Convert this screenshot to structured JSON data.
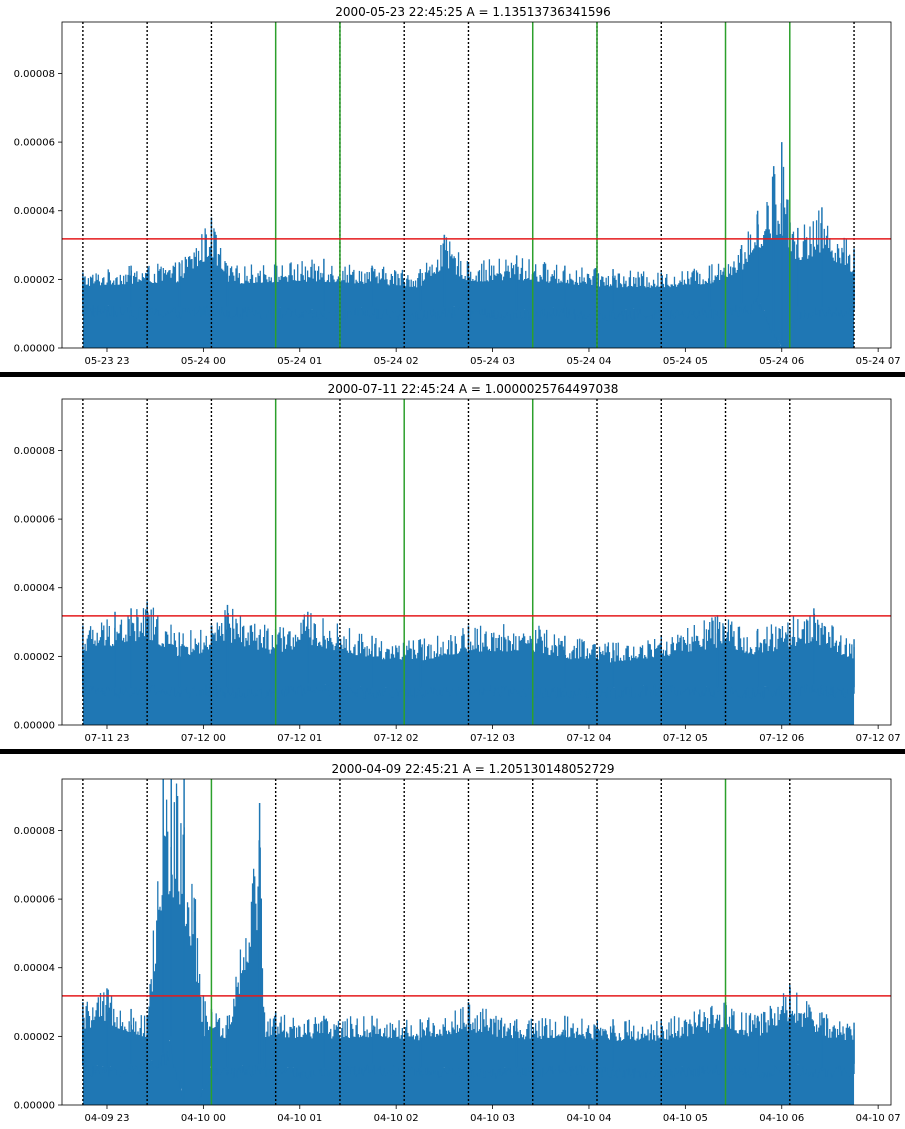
{
  "style": {
    "series_color": "#1f77b4",
    "threshold_color": "#e41a1c",
    "event_line_color": "#2ca02c",
    "marker_line_color": "#000000",
    "separator_color": "#000000"
  },
  "chart_data": [
    {
      "type": "area",
      "title": "2000-05-23 22:45:25  A = 1.13513736341596",
      "xlabel": "",
      "ylabel": "",
      "x_range": [
        "2000-05-23 22:45:25",
        "2000-05-24 06:45:25"
      ],
      "xlim": [
        "2000-05-23 22:32",
        "2000-05-24 07:08"
      ],
      "ylim": [
        0,
        9.5e-05
      ],
      "yticks": [
        0,
        2e-05,
        4e-05,
        6e-05,
        8e-05
      ],
      "ytick_labels": [
        "0.00000",
        "0.00002",
        "0.00004",
        "0.00006",
        "0.00008"
      ],
      "xticks": [
        "2000-05-23 23:00",
        "2000-05-24 00:00",
        "2000-05-24 01:00",
        "2000-05-24 02:00",
        "2000-05-24 03:00",
        "2000-05-24 04:00",
        "2000-05-24 05:00",
        "2000-05-24 06:00",
        "2000-05-24 07:00"
      ],
      "xtick_labels": [
        "05-23 23",
        "05-24 00",
        "05-24 01",
        "05-24 02",
        "05-24 03",
        "05-24 04",
        "05-24 05",
        "05-24 06",
        "05-24 07"
      ],
      "threshold": 3.18e-05,
      "dotted_lines": [
        "2000-05-23 22:45",
        "2000-05-23 23:25",
        "2000-05-24 00:05",
        "2000-05-24 01:25",
        "2000-05-24 02:05",
        "2000-05-24 02:45",
        "2000-05-24 04:05",
        "2000-05-24 04:45",
        "2000-05-24 06:45"
      ],
      "green_lines": [
        "2000-05-24 00:45",
        "2000-05-24 01:25",
        "2000-05-24 03:25",
        "2000-05-24 04:05",
        "2000-05-24 05:25",
        "2000-05-24 06:05"
      ],
      "series": [
        {
          "x": [
            "2000-05-23 22:45",
            "2000-05-23 23:15",
            "2000-05-23 23:45",
            "2000-05-24 00:05",
            "2000-05-24 00:15",
            "2000-05-24 00:45",
            "2000-05-24 01:15",
            "2000-05-24 01:45",
            "2000-05-24 02:15",
            "2000-05-24 02:30",
            "2000-05-24 02:45",
            "2000-05-24 03:15",
            "2000-05-24 03:45",
            "2000-05-24 04:15",
            "2000-05-24 04:45",
            "2000-05-24 05:15",
            "2000-05-24 05:35",
            "2000-05-24 05:45",
            "2000-05-24 05:55",
            "2000-05-24 06:00",
            "2000-05-24 06:10",
            "2000-05-24 06:25",
            "2000-05-24 06:45"
          ],
          "y": [
            2.2e-05,
            2.4e-05,
            2.5e-05,
            3.8e-05,
            2.4e-05,
            2.5e-05,
            2.6e-05,
            2.4e-05,
            2.3e-05,
            3.3e-05,
            2.5e-05,
            2.7e-05,
            2.4e-05,
            2.3e-05,
            2.2e-05,
            2.4e-05,
            3e-05,
            4e-05,
            5.3e-05,
            6e-05,
            3.5e-05,
            4.1e-05,
            2.9e-05
          ],
          "baseline": [
            1.3e-05,
            1.2e-05,
            1.2e-05,
            1.3e-05,
            1.2e-05,
            1.2e-05,
            1.1e-05,
            1.2e-05,
            1.1e-05,
            1.2e-05,
            1.2e-05,
            1.1e-05,
            1.2e-05,
            1.1e-05,
            1.2e-05,
            1.2e-05,
            1.3e-05,
            1.5e-05,
            5e-06,
            0,
            1.2e-05,
            1.2e-05,
            1.2e-05
          ]
        }
      ]
    },
    {
      "type": "area",
      "title": "2000-07-11 22:45:24  A = 1.0000025764497038",
      "xlabel": "",
      "ylabel": "",
      "x_range": [
        "2000-07-11 22:45:24",
        "2000-07-12 06:45:24"
      ],
      "xlim": [
        "2000-07-11 22:32",
        "2000-07-12 07:08"
      ],
      "ylim": [
        0,
        9.5e-05
      ],
      "yticks": [
        0,
        2e-05,
        4e-05,
        6e-05,
        8e-05
      ],
      "ytick_labels": [
        "0.00000",
        "0.00002",
        "0.00004",
        "0.00006",
        "0.00008"
      ],
      "xticks": [
        "2000-07-11 23:00",
        "2000-07-12 00:00",
        "2000-07-12 01:00",
        "2000-07-12 02:00",
        "2000-07-12 03:00",
        "2000-07-12 04:00",
        "2000-07-12 05:00",
        "2000-07-12 06:00",
        "2000-07-12 07:00"
      ],
      "xtick_labels": [
        "07-11 23",
        "07-12 00",
        "07-12 01",
        "07-12 02",
        "07-12 03",
        "07-12 04",
        "07-12 05",
        "07-12 06",
        "07-12 07"
      ],
      "threshold": 3.18e-05,
      "dotted_lines": [
        "2000-07-11 22:45",
        "2000-07-11 23:25",
        "2000-07-12 00:05",
        "2000-07-12 01:25",
        "2000-07-12 02:45",
        "2000-07-12 04:05",
        "2000-07-12 04:45",
        "2000-07-12 05:25",
        "2000-07-12 06:05"
      ],
      "green_lines": [
        "2000-07-12 00:45",
        "2000-07-12 02:05",
        "2000-07-12 03:25"
      ],
      "series": [
        {
          "x": [
            "2000-07-11 22:45",
            "2000-07-11 23:05",
            "2000-07-11 23:15",
            "2000-07-11 23:25",
            "2000-07-11 23:45",
            "2000-07-12 00:05",
            "2000-07-12 00:15",
            "2000-07-12 00:45",
            "2000-07-12 01:05",
            "2000-07-12 01:45",
            "2000-07-12 02:15",
            "2000-07-12 02:45",
            "2000-07-12 03:25",
            "2000-07-12 03:45",
            "2000-07-12 04:15",
            "2000-07-12 04:45",
            "2000-07-12 05:20",
            "2000-07-12 05:45",
            "2000-07-12 06:20",
            "2000-07-12 06:45"
          ],
          "y": [
            2.9e-05,
            3.3e-05,
            3.4e-05,
            3.6e-05,
            2.7e-05,
            2.9e-05,
            3.5e-05,
            2.8e-05,
            3.3e-05,
            2.6e-05,
            2.5e-05,
            2.9e-05,
            3e-05,
            2.6e-05,
            2.4e-05,
            2.6e-05,
            3.2e-05,
            2.8e-05,
            3.4e-05,
            2.5e-05
          ],
          "baseline": [
            1.2e-05,
            1.1e-05,
            1.1e-05,
            1.2e-05,
            1.1e-05,
            1.2e-05,
            1.1e-05,
            1.1e-05,
            1.2e-05,
            1.1e-05,
            1.1e-05,
            1.2e-05,
            1.1e-05,
            1.1e-05,
            1.1e-05,
            1.2e-05,
            1.1e-05,
            1.1e-05,
            1.2e-05,
            1.1e-05
          ]
        }
      ]
    },
    {
      "type": "area",
      "title": "2000-04-09 22:45:21  A = 1.205130148052729",
      "xlabel": "",
      "ylabel": "",
      "x_range": [
        "2000-04-09 22:45:21",
        "2000-04-10 06:45:21"
      ],
      "xlim": [
        "2000-04-09 22:32",
        "2000-04-10 07:08"
      ],
      "ylim": [
        0,
        9.5e-05
      ],
      "yticks": [
        0,
        2e-05,
        4e-05,
        6e-05,
        8e-05
      ],
      "ytick_labels": [
        "0.00000",
        "0.00002",
        "0.00004",
        "0.00006",
        "0.00008"
      ],
      "xticks": [
        "2000-04-09 23:00",
        "2000-04-10 00:00",
        "2000-04-10 01:00",
        "2000-04-10 02:00",
        "2000-04-10 03:00",
        "2000-04-10 04:00",
        "2000-04-10 05:00",
        "2000-04-10 06:00",
        "2000-04-10 07:00"
      ],
      "xtick_labels": [
        "04-09 23",
        "04-10 00",
        "04-10 01",
        "04-10 02",
        "04-10 03",
        "04-10 04",
        "04-10 05",
        "04-10 06",
        "04-10 07"
      ],
      "threshold": 3.18e-05,
      "dotted_lines": [
        "2000-04-09 22:45",
        "2000-04-09 23:25",
        "2000-04-10 00:45",
        "2000-04-10 01:25",
        "2000-04-10 02:05",
        "2000-04-10 02:45",
        "2000-04-10 03:25",
        "2000-04-10 04:05",
        "2000-04-10 04:45",
        "2000-04-10 06:05"
      ],
      "green_lines": [
        "2000-04-10 00:05",
        "2000-04-10 05:25"
      ],
      "series": [
        {
          "x": [
            "2000-04-09 22:45",
            "2000-04-09 23:00",
            "2000-04-09 23:15",
            "2000-04-09 23:25",
            "2000-04-09 23:35",
            "2000-04-09 23:40",
            "2000-04-09 23:48",
            "2000-04-09 23:55",
            "2000-04-10 00:00",
            "2000-04-10 00:05",
            "2000-04-10 00:15",
            "2000-04-10 00:35",
            "2000-04-10 00:38",
            "2000-04-10 00:45",
            "2000-04-10 01:15",
            "2000-04-10 01:45",
            "2000-04-10 02:15",
            "2000-04-10 02:45",
            "2000-04-10 03:15",
            "2000-04-10 03:45",
            "2000-04-10 04:15",
            "2000-04-10 04:45",
            "2000-04-10 05:25",
            "2000-04-10 05:45",
            "2000-04-10 06:05",
            "2000-04-10 06:25",
            "2000-04-10 06:45"
          ],
          "y": [
            3e-05,
            3.4e-05,
            2.8e-05,
            2.6e-05,
            9.5e-05,
            9.5e-05,
            9.5e-05,
            6e-05,
            3.2e-05,
            2.8e-05,
            2.6e-05,
            8.8e-05,
            2.7e-05,
            2.7e-05,
            2.6e-05,
            2.6e-05,
            2.5e-05,
            3e-05,
            2.5e-05,
            2.6e-05,
            2.5e-05,
            2.5e-05,
            3e-05,
            2.6e-05,
            3.5e-05,
            2.7e-05,
            2.4e-05
          ],
          "baseline": [
            1.2e-05,
            1.1e-05,
            1.2e-05,
            1.2e-05,
            1.5e-05,
            2e-05,
            0,
            0,
            5e-06,
            1.2e-05,
            1.1e-05,
            1.2e-05,
            1.1e-05,
            1.1e-05,
            1.1e-05,
            1.2e-05,
            1.1e-05,
            1.1e-05,
            1.1e-05,
            1.2e-05,
            1.1e-05,
            1.1e-05,
            1.2e-05,
            1.1e-05,
            1.2e-05,
            1.1e-05,
            1.2e-05
          ]
        }
      ]
    }
  ]
}
